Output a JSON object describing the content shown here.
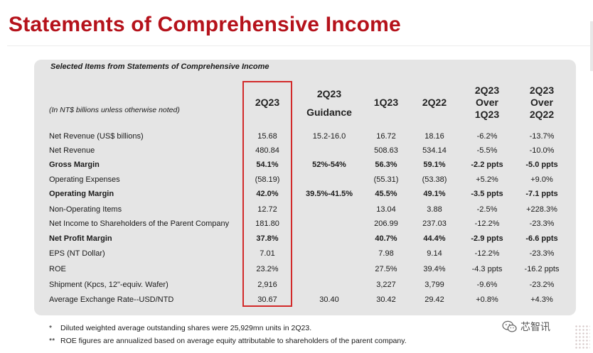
{
  "title": "Statements of Comprehensive Income",
  "table": {
    "subtitle": "Selected Items from Statements of Comprehensive Income",
    "unit_note": "(In NT$ billions unless otherwise noted)",
    "headers": {
      "h2q23": [
        "2Q23"
      ],
      "guidance": [
        "2Q23",
        "Guidance"
      ],
      "h1q23": [
        "1Q23"
      ],
      "h2q22": [
        "2Q22"
      ],
      "over1q23": [
        "2Q23",
        "Over",
        "1Q23"
      ],
      "over2q22": [
        "2Q23",
        "Over",
        "2Q22"
      ]
    },
    "rows": [
      {
        "label": "Net Revenue (US$ billions)",
        "q2": "15.68",
        "guid": "15.2-16.0",
        "q1": "16.72",
        "q2_22": "18.16",
        "ov1": "-6.2%",
        "ov2": "-13.7%",
        "bold": false
      },
      {
        "label": "Net Revenue",
        "q2": "480.84",
        "guid": "",
        "q1": "508.63",
        "q2_22": "534.14",
        "ov1": "-5.5%",
        "ov2": "-10.0%",
        "bold": false
      },
      {
        "label": "Gross Margin",
        "q2": "54.1%",
        "guid": "52%-54%",
        "q1": "56.3%",
        "q2_22": "59.1%",
        "ov1": "-2.2 ppts",
        "ov2": "-5.0 ppts",
        "bold": true
      },
      {
        "label": "Operating Expenses",
        "q2": "(58.19)",
        "guid": "",
        "q1": "(55.31)",
        "q2_22": "(53.38)",
        "ov1": "+5.2%",
        "ov2": "+9.0%",
        "bold": false
      },
      {
        "label": "Operating Margin",
        "q2": "42.0%",
        "guid": "39.5%-41.5%",
        "q1": "45.5%",
        "q2_22": "49.1%",
        "ov1": "-3.5 ppts",
        "ov2": "-7.1 ppts",
        "bold": true
      },
      {
        "label": "Non-Operating Items",
        "q2": "12.72",
        "guid": "",
        "q1": "13.04",
        "q2_22": "3.88",
        "ov1": "-2.5%",
        "ov2": "+228.3%",
        "bold": false
      },
      {
        "label": "Net Income to Shareholders of the Parent Company",
        "q2": "181.80",
        "guid": "",
        "q1": "206.99",
        "q2_22": "237.03",
        "ov1": "-12.2%",
        "ov2": "-23.3%",
        "bold": false
      },
      {
        "label": "Net Profit Margin",
        "q2": "37.8%",
        "guid": "",
        "q1": "40.7%",
        "q2_22": "44.4%",
        "ov1": "-2.9 ppts",
        "ov2": "-6.6 ppts",
        "bold": true
      },
      {
        "label": "EPS (NT Dollar)",
        "q2": "7.01",
        "guid": "",
        "q1": "7.98",
        "q2_22": "9.14",
        "ov1": "-12.2%",
        "ov2": "-23.3%",
        "bold": false
      },
      {
        "label": "ROE",
        "q2": "23.2%",
        "guid": "",
        "q1": "27.5%",
        "q2_22": "39.4%",
        "ov1": "-4.3 ppts",
        "ov2": "-16.2 ppts",
        "bold": false
      },
      {
        "label": "Shipment (Kpcs, 12\"-equiv. Wafer)",
        "q2": "2,916",
        "guid": "",
        "q1": "3,227",
        "q2_22": "3,799",
        "ov1": "-9.6%",
        "ov2": "-23.2%",
        "bold": false
      },
      {
        "label": "Average Exchange Rate--USD/NTD",
        "q2": "30.67",
        "guid": "30.40",
        "q1": "30.42",
        "q2_22": "29.42",
        "ov1": "+0.8%",
        "ov2": "+4.3%",
        "bold": false
      }
    ]
  },
  "footnotes": [
    {
      "mark": "*",
      "text": "Diluted weighted average outstanding shares were 25,929mn units in 2Q23."
    },
    {
      "mark": "**",
      "text": "ROE figures are annualized based on average equity attributable to shareholders of the parent company."
    }
  ],
  "watermark": {
    "text": "芯智讯",
    "icon": "wechat-icon"
  },
  "colors": {
    "title": "#b5121b",
    "panel": "#e5e5e5",
    "highlight_box": "#d22a2a"
  }
}
